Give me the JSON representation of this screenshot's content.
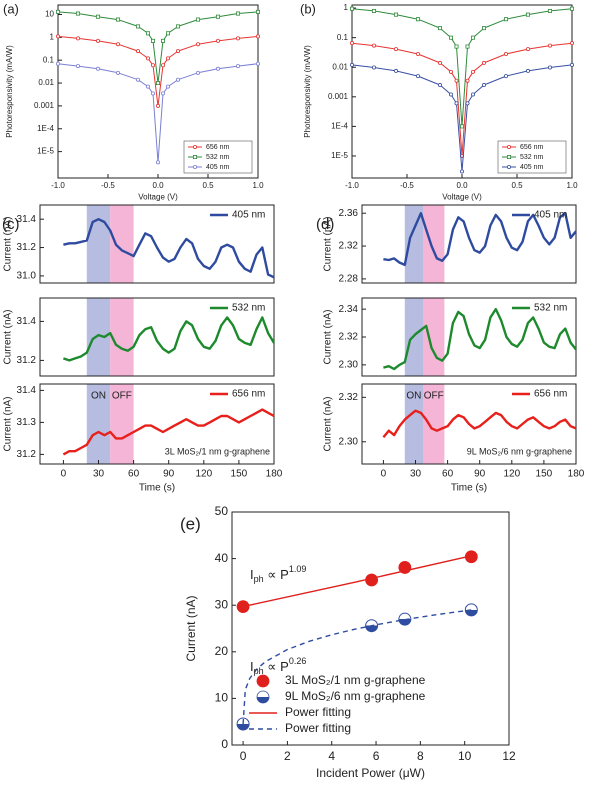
{
  "chart_data": [
    {
      "type": "line",
      "label": "(a)",
      "xlabel": "Voltage (V)",
      "ylabel": "Photoresponsivity (mA/W)",
      "log_y": true,
      "xlim": [
        -1,
        1
      ],
      "ylim": [
        7e-07,
        26
      ],
      "xticks": [
        {
          "value": -1,
          "label": "-1.0"
        },
        -0.5,
        {
          "value": 0,
          "label": "0.0"
        },
        0.5,
        {
          "value": 1,
          "label": "1.0"
        }
      ],
      "yticks": [
        {
          "value": 1e-05,
          "label": "1E-5"
        },
        {
          "value": 0.0001,
          "label": "1E-4"
        },
        0.001,
        0.01,
        0.1,
        1,
        10
      ],
      "legend": "lower right",
      "x": [
        -1,
        -0.8,
        -0.6,
        -0.4,
        -0.2,
        -0.1,
        -0.05,
        0,
        0.05,
        0.1,
        0.2,
        0.4,
        0.6,
        0.8,
        1
      ],
      "series": [
        {
          "name": "656 nm",
          "color": "#e8332f",
          "marker": "circle",
          "values": [
            1.1,
            0.9,
            0.7,
            0.5,
            0.25,
            0.12,
            0.06,
            0.001,
            0.06,
            0.12,
            0.25,
            0.5,
            0.7,
            0.9,
            1.1
          ]
        },
        {
          "name": "532 nm",
          "color": "#2e8b3a",
          "marker": "square",
          "values": [
            13,
            11,
            8,
            6,
            3,
            1.5,
            0.7,
            0.01,
            0.7,
            1.5,
            3,
            6,
            8,
            11,
            13
          ]
        },
        {
          "name": "405 nm",
          "color": "#7b7fd4",
          "marker": "circle",
          "values": [
            0.07,
            0.055,
            0.042,
            0.028,
            0.014,
            0.007,
            0.0035,
            3.4e-06,
            0.0035,
            0.007,
            0.014,
            0.028,
            0.042,
            0.055,
            0.07
          ]
        }
      ]
    },
    {
      "type": "line",
      "label": "(b)",
      "xlabel": "Voltage (V)",
      "ylabel": "Photoresponsivity (mA/W)",
      "log_y": true,
      "xlim": [
        -1,
        1
      ],
      "ylim": [
        1.8e-06,
        1.27
      ],
      "xticks": [
        {
          "value": -1,
          "label": "-1.0"
        },
        -0.5,
        {
          "value": 0,
          "label": "0.0"
        },
        0.5,
        {
          "value": 1,
          "label": "1.0"
        }
      ],
      "yticks": [
        {
          "value": 1e-05,
          "label": "1E-5"
        },
        {
          "value": 0.0001,
          "label": "1E-4"
        },
        0.001,
        0.01,
        0.1,
        1
      ],
      "legend": "lower right",
      "x": [
        -1,
        -0.8,
        -0.6,
        -0.4,
        -0.2,
        -0.1,
        -0.05,
        0,
        0.05,
        0.1,
        0.2,
        0.4,
        0.6,
        0.8,
        1
      ],
      "series": [
        {
          "name": "656 nm",
          "color": "#e8332f",
          "marker": "circle",
          "values": [
            0.065,
            0.054,
            0.041,
            0.028,
            0.014,
            0.007,
            0.0035,
            1e-05,
            0.0035,
            0.007,
            0.014,
            0.028,
            0.041,
            0.054,
            0.065
          ]
        },
        {
          "name": "532 nm",
          "color": "#2e8b3a",
          "marker": "square",
          "values": [
            0.95,
            0.8,
            0.6,
            0.42,
            0.21,
            0.1,
            0.05,
            0.0001,
            0.05,
            0.1,
            0.21,
            0.42,
            0.6,
            0.8,
            0.95
          ]
        },
        {
          "name": "405 nm",
          "color": "#3a4fa3",
          "marker": "circle",
          "values": [
            0.012,
            0.0098,
            0.0075,
            0.005,
            0.0025,
            0.0012,
            0.0006,
            3e-06,
            0.0006,
            0.0012,
            0.0025,
            0.005,
            0.0075,
            0.0098,
            0.012
          ]
        }
      ]
    },
    {
      "type": "line",
      "label": "(c)",
      "ylabel": "Current (nA)",
      "xlim": [
        -20,
        180
      ],
      "ylim": [
        30.95,
        31.5
      ],
      "yticks": [
        {
          "value": 31,
          "label": "31.0"
        },
        31.2,
        31.4
      ],
      "legend": "upper right",
      "shading": [
        {
          "x0": 20,
          "x1": 40,
          "color": "#aab0dc"
        },
        {
          "x0": 40,
          "x1": 60,
          "color": "#f3a8d0"
        }
      ],
      "x": [
        0,
        5,
        10,
        15,
        20,
        25,
        30,
        35,
        40,
        45,
        50,
        55,
        60,
        65,
        70,
        75,
        80,
        85,
        90,
        95,
        100,
        105,
        110,
        115,
        120,
        125,
        130,
        135,
        140,
        145,
        150,
        155,
        160,
        165,
        170,
        175,
        180
      ],
      "series": [
        {
          "name": "405 nm",
          "color": "#2f4ba0",
          "values": [
            31.22,
            31.23,
            31.23,
            31.24,
            31.25,
            31.38,
            31.4,
            31.38,
            31.32,
            31.22,
            31.18,
            31.16,
            31.14,
            31.22,
            31.3,
            31.28,
            31.2,
            31.13,
            31.1,
            31.12,
            31.2,
            31.26,
            31.23,
            31.12,
            31.07,
            31.05,
            31.1,
            31.2,
            31.22,
            31.2,
            31.1,
            31.05,
            31.03,
            31.15,
            31.2,
            31.01,
            30.99
          ]
        }
      ]
    },
    {
      "type": "line",
      "ylabel": "Current (nA)",
      "xlim": [
        -20,
        180
      ],
      "ylim": [
        31.12,
        31.52
      ],
      "yticks": [
        31.2,
        31.4
      ],
      "legend": "upper right",
      "shading": [
        {
          "x0": 20,
          "x1": 40,
          "color": "#aab0dc"
        },
        {
          "x0": 40,
          "x1": 60,
          "color": "#f3a8d0"
        }
      ],
      "x": [
        0,
        5,
        10,
        15,
        20,
        25,
        30,
        35,
        40,
        45,
        50,
        55,
        60,
        65,
        70,
        75,
        80,
        85,
        90,
        95,
        100,
        105,
        110,
        115,
        120,
        125,
        130,
        135,
        140,
        145,
        150,
        155,
        160,
        165,
        170,
        175,
        180
      ],
      "series": [
        {
          "name": "532 nm",
          "color": "#1e8a2e",
          "values": [
            31.21,
            31.2,
            31.21,
            31.22,
            31.24,
            31.31,
            31.33,
            31.32,
            31.34,
            31.28,
            31.26,
            31.25,
            31.27,
            31.33,
            31.36,
            31.37,
            31.3,
            31.26,
            31.24,
            31.26,
            31.35,
            31.4,
            31.38,
            31.31,
            31.27,
            31.26,
            31.3,
            31.38,
            31.42,
            31.38,
            31.31,
            31.29,
            31.28,
            31.36,
            31.42,
            31.34,
            31.29
          ]
        }
      ]
    },
    {
      "type": "line",
      "ylabel": "Current (nA)",
      "xlabel": "Time (s)",
      "xlim": [
        -20,
        180
      ],
      "ylim": [
        31.17,
        31.42
      ],
      "xticks": [
        0,
        30,
        60,
        90,
        120,
        150,
        180
      ],
      "yticks": [
        31.2,
        31.3,
        31.4
      ],
      "legend": "upper right",
      "note": "3L MoS₂/1 nm g-graphene",
      "shading": [
        {
          "x0": 20,
          "x1": 40,
          "color": "#aab0dc",
          "label": "ON"
        },
        {
          "x0": 40,
          "x1": 60,
          "color": "#f3a8d0",
          "label": "OFF"
        }
      ],
      "x": [
        0,
        5,
        10,
        15,
        20,
        25,
        30,
        35,
        40,
        45,
        50,
        55,
        60,
        65,
        70,
        75,
        80,
        85,
        90,
        95,
        100,
        105,
        110,
        115,
        120,
        125,
        130,
        135,
        140,
        145,
        150,
        155,
        160,
        165,
        170,
        175,
        180
      ],
      "series": [
        {
          "name": "656 nm",
          "color": "#e8201c",
          "values": [
            31.2,
            31.21,
            31.21,
            31.22,
            31.23,
            31.26,
            31.27,
            31.26,
            31.27,
            31.25,
            31.25,
            31.26,
            31.27,
            31.28,
            31.29,
            31.29,
            31.28,
            31.27,
            31.28,
            31.29,
            31.3,
            31.31,
            31.3,
            31.29,
            31.29,
            31.3,
            31.31,
            31.32,
            31.32,
            31.31,
            31.3,
            31.31,
            31.32,
            31.33,
            31.34,
            31.33,
            31.32
          ]
        }
      ]
    },
    {
      "type": "line",
      "label": "(d)",
      "ylabel": "Current (nA)",
      "xlim": [
        -20,
        180
      ],
      "ylim": [
        2.275,
        2.37
      ],
      "yticks": [
        2.28,
        2.32,
        2.36
      ],
      "legend": "upper right",
      "shading": [
        {
          "x0": 20,
          "x1": 37,
          "color": "#aab0dc"
        },
        {
          "x0": 37,
          "x1": 57,
          "color": "#f3a8d0"
        }
      ],
      "x": [
        0,
        5,
        10,
        15,
        20,
        25,
        30,
        35,
        40,
        45,
        50,
        55,
        60,
        65,
        70,
        75,
        80,
        85,
        90,
        95,
        100,
        105,
        110,
        115,
        120,
        125,
        130,
        135,
        140,
        145,
        150,
        155,
        160,
        165,
        170,
        175,
        180
      ],
      "series": [
        {
          "name": "405 nm",
          "color": "#2f4ba0",
          "values": [
            2.304,
            2.303,
            2.305,
            2.3,
            2.297,
            2.33,
            2.345,
            2.36,
            2.34,
            2.32,
            2.305,
            2.302,
            2.31,
            2.34,
            2.355,
            2.35,
            2.33,
            2.315,
            2.312,
            2.32,
            2.345,
            2.358,
            2.35,
            2.33,
            2.318,
            2.315,
            2.325,
            2.35,
            2.358,
            2.345,
            2.33,
            2.322,
            2.33,
            2.355,
            2.36,
            2.33,
            2.338
          ]
        }
      ]
    },
    {
      "type": "line",
      "ylabel": "Current (nA)",
      "xlim": [
        -20,
        180
      ],
      "ylim": [
        2.292,
        2.348
      ],
      "yticks": [
        {
          "value": 2.3,
          "label": "2.30"
        },
        2.32,
        2.34
      ],
      "legend": "upper right",
      "shading": [
        {
          "x0": 20,
          "x1": 37,
          "color": "#aab0dc"
        },
        {
          "x0": 37,
          "x1": 57,
          "color": "#f3a8d0"
        }
      ],
      "x": [
        0,
        5,
        10,
        15,
        20,
        25,
        30,
        35,
        40,
        45,
        50,
        55,
        60,
        65,
        70,
        75,
        80,
        85,
        90,
        95,
        100,
        105,
        110,
        115,
        120,
        125,
        130,
        135,
        140,
        145,
        150,
        155,
        160,
        165,
        170,
        175,
        180
      ],
      "series": [
        {
          "name": "532 nm",
          "color": "#1e8a2e",
          "values": [
            2.298,
            2.299,
            2.297,
            2.3,
            2.302,
            2.318,
            2.322,
            2.325,
            2.328,
            2.312,
            2.305,
            2.303,
            2.308,
            2.33,
            2.338,
            2.335,
            2.322,
            2.314,
            2.312,
            2.318,
            2.334,
            2.34,
            2.332,
            2.32,
            2.315,
            2.313,
            2.318,
            2.33,
            2.334,
            2.326,
            2.316,
            2.313,
            2.312,
            2.322,
            2.326,
            2.316,
            2.311
          ]
        }
      ]
    },
    {
      "type": "line",
      "ylabel": "Current (nA)",
      "xlabel": "Time (s)",
      "xlim": [
        -20,
        180
      ],
      "ylim": [
        2.29,
        2.326
      ],
      "xticks": [
        0,
        30,
        60,
        90,
        120,
        150,
        180
      ],
      "yticks": [
        {
          "value": 2.3,
          "label": "2.30"
        },
        2.32
      ],
      "legend": "upper right",
      "note": "9L MoS₂/6 nm g-graphene",
      "shading": [
        {
          "x0": 20,
          "x1": 37,
          "color": "#aab0dc",
          "label": "ON"
        },
        {
          "x0": 37,
          "x1": 57,
          "color": "#f3a8d0",
          "label": "OFF"
        }
      ],
      "x": [
        0,
        5,
        10,
        15,
        20,
        25,
        30,
        35,
        40,
        45,
        50,
        55,
        60,
        65,
        70,
        75,
        80,
        85,
        90,
        95,
        100,
        105,
        110,
        115,
        120,
        125,
        130,
        135,
        140,
        145,
        150,
        155,
        160,
        165,
        170,
        175,
        180
      ],
      "series": [
        {
          "name": "656 nm",
          "color": "#e8201c",
          "values": [
            2.302,
            2.305,
            2.303,
            2.307,
            2.31,
            2.312,
            2.314,
            2.313,
            2.31,
            2.306,
            2.305,
            2.306,
            2.307,
            2.31,
            2.312,
            2.311,
            2.308,
            2.306,
            2.307,
            2.309,
            2.311,
            2.313,
            2.312,
            2.309,
            2.307,
            2.306,
            2.308,
            2.31,
            2.311,
            2.309,
            2.307,
            2.306,
            2.307,
            2.309,
            2.31,
            2.307,
            2.306
          ]
        }
      ]
    },
    {
      "type": "scatter",
      "label": "(e)",
      "xlabel": "Incident Power (μW)",
      "ylabel": "Current (nA)",
      "xlim": [
        -0.5,
        12
      ],
      "ylim": [
        0,
        50
      ],
      "xticks": [
        0,
        2,
        4,
        6,
        8,
        10,
        12
      ],
      "yticks": [
        0,
        10,
        20,
        30,
        40,
        50
      ],
      "legend": "lower right",
      "annotations": [
        {
          "base": "I",
          "sub": "ph",
          "text": " ∝ P",
          "sup": "1.09"
        },
        {
          "base": "I",
          "sub": "ph",
          "text": " ∝ P",
          "sup": "0.26"
        }
      ],
      "series": [
        {
          "name": "3L MoS₂/1 nm g-graphene",
          "type": "scatter",
          "color": "#e0201c",
          "x": [
            0,
            5.8,
            7.3,
            10.3
          ],
          "values": [
            29.7,
            35.4,
            38.1,
            40.4
          ]
        },
        {
          "name": "9L MoS₂/6 nm g-graphene",
          "type": "scatter",
          "marker": "half",
          "color": "#2f4da0",
          "x": [
            0,
            5.8,
            7.3,
            10.3
          ],
          "values": [
            4.5,
            25.6,
            27,
            29
          ]
        },
        {
          "name": "Power fitting",
          "type": "line",
          "color": "#e0201c",
          "x": [
            0,
            5,
            10.3
          ],
          "values": [
            29.7,
            34.9,
            40.6
          ]
        },
        {
          "name": "Power fitting",
          "type": "line",
          "dash": true,
          "color": "#2f4da0",
          "x": [
            0,
            0.1,
            0.3,
            0.6,
            1,
            2,
            3,
            4,
            5,
            6,
            7,
            8,
            9,
            10.3
          ],
          "values": [
            4.5,
            11.84,
            14.27,
            16.2,
            17.86,
            20.49,
            22.28,
            23.64,
            24.8,
            25.79,
            26.66,
            27.44,
            28.15,
            29
          ]
        }
      ]
    }
  ]
}
